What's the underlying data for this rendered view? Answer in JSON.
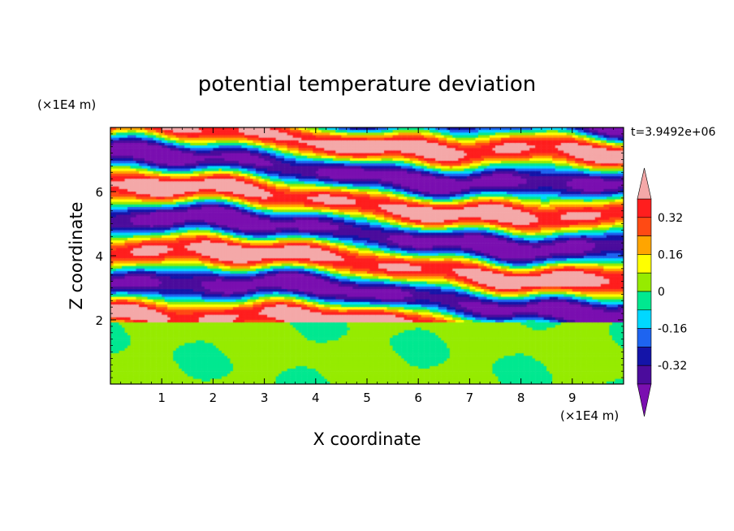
{
  "chart_data": {
    "type": "heatmap",
    "title": "potential temperature deviation",
    "xlabel": "X coordinate",
    "ylabel": "Z coordinate",
    "x_unit_label": "(×1E4 m)",
    "y_unit_label": "(×1E4 m)",
    "time_label": "t=3.9492e+06",
    "xlim": [
      0,
      10
    ],
    "ylim": [
      0,
      8
    ],
    "x_ticks": [
      "1",
      "2",
      "3",
      "4",
      "5",
      "6",
      "7",
      "8",
      "9"
    ],
    "y_ticks": [
      "2",
      "4",
      "6"
    ],
    "colorbar": {
      "tick_labels": [
        "0.32",
        "0.16",
        "0",
        "-0.16",
        "-0.32"
      ],
      "tick_values": [
        0.32,
        0.16,
        0,
        -0.16,
        -0.32
      ],
      "levels": [
        -0.4,
        -0.32,
        -0.24,
        -0.16,
        -0.08,
        0,
        0.08,
        0.16,
        0.24,
        0.32,
        0.4
      ],
      "colors": [
        "#7a0fb0",
        "#4b0c9c",
        "#1414a8",
        "#1e64f0",
        "#00d8ff",
        "#00e890",
        "#96eb00",
        "#ffff00",
        "#ffa500",
        "#ff4a14",
        "#ff1e1e",
        "#f4a8a8"
      ]
    },
    "grid": false
  }
}
